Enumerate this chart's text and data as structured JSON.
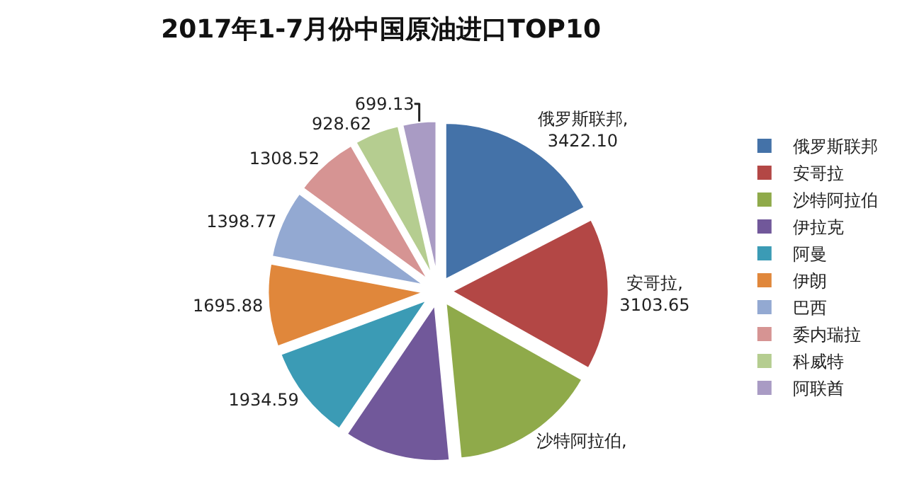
{
  "chart_data": {
    "type": "pie",
    "title": "2017年1-7月份中国原油进口TOP10",
    "categories": [
      "俄罗斯联邦",
      "安哥拉",
      "沙特阿拉伯",
      "伊拉克",
      "阿曼",
      "伊朗",
      "巴西",
      "委内瑞拉",
      "科威特",
      "阿联酋"
    ],
    "values": [
      3422.1,
      3103.65,
      3010,
      2170,
      1934.59,
      1695.88,
      1398.77,
      1308.52,
      928.62,
      699.13
    ],
    "value_labels": [
      "俄罗斯联邦,\n3422.10",
      "安哥拉,\n3103.65",
      "沙特阿拉伯,",
      null,
      "1934.59",
      "1695.88",
      "1398.77",
      "1308.52",
      "928.62",
      "699.13"
    ],
    "colors": [
      "#4472a8",
      "#b34745",
      "#8faa4a",
      "#71589a",
      "#3b9bb5",
      "#e0873b",
      "#93a9d2",
      "#d69493",
      "#b5cd90",
      "#a99bc4"
    ],
    "legend": "right"
  }
}
